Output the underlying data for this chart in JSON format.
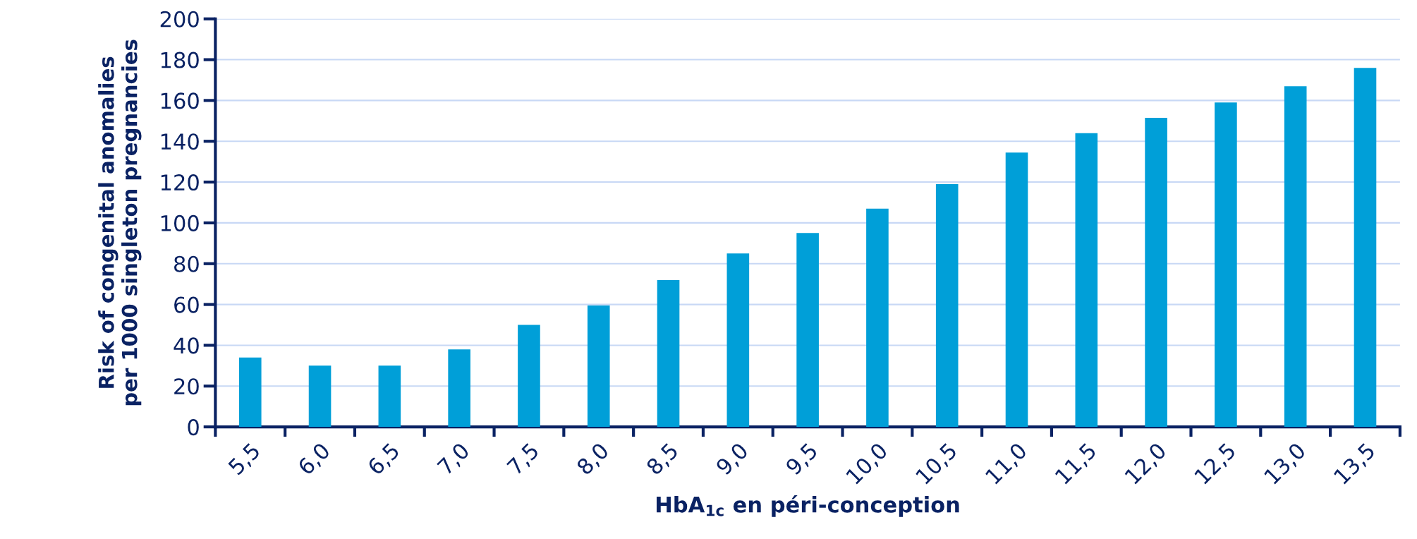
{
  "chart_data": {
    "type": "bar",
    "xlabel": "HbA$_{1c}$ en péri-conception",
    "ylabel": "Risk of congenital anomalies\nper 1000 singleton pregnancies",
    "categories": [
      "5,5",
      "6,0",
      "6,5",
      "7,0",
      "7,5",
      "8,0",
      "8,5",
      "9,0",
      "9,5",
      "10,0",
      "10,5",
      "11,0",
      "11,5",
      "12,0",
      "12,5",
      "13,0",
      "13,5"
    ],
    "values": [
      34,
      30,
      30,
      38,
      50,
      59.5,
      72,
      85,
      95,
      107,
      119,
      134.5,
      144,
      151.5,
      159,
      167,
      176
    ],
    "color": "#009fd8",
    "ylim": [
      0,
      200
    ],
    "yticks": [
      0,
      20,
      40,
      60,
      80,
      100,
      120,
      140,
      160,
      180,
      200
    ],
    "grid": "y"
  }
}
